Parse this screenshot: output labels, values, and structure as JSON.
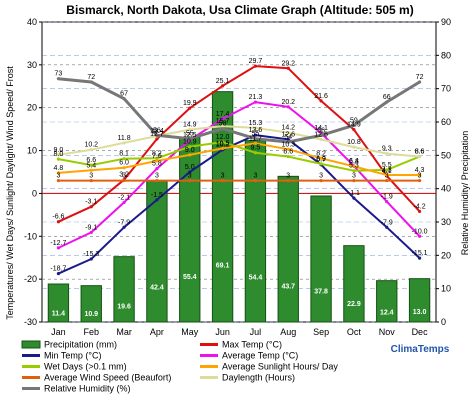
{
  "chart_data": {
    "type": "bar+line",
    "title": "Bismarck, North Dakota, Usa Climate Graph (Altitude: 505 m)",
    "ylabel_left": "Temperatures/ Wet Days/ Sunlight/ Daylight/ Wind Speed/ Frost",
    "ylabel_right": "Relative Humidity/ Precipitation",
    "ylim_left": [
      -30,
      40
    ],
    "ylim_right": [
      0,
      90
    ],
    "yticks_left": [
      "-30",
      "-20",
      "-10",
      "0",
      "10",
      "20",
      "30",
      "40"
    ],
    "yticks_right": [
      "0",
      "10",
      "20",
      "30",
      "40",
      "50",
      "60",
      "70",
      "80",
      "90"
    ],
    "categories": [
      "Jan",
      "Feb",
      "Mar",
      "Apr",
      "May",
      "Jun",
      "Jul",
      "Aug",
      "Sep",
      "Oct",
      "Nov",
      "Dec"
    ],
    "grid": true,
    "legend_position": "bottom",
    "brand": "ClimaTemps",
    "bars": {
      "name": "Precipitation (mm)",
      "axis": "right",
      "color": "#2e8b2e",
      "values": [
        11.4,
        10.9,
        19.6,
        42.4,
        55.4,
        69.1,
        54.4,
        43.7,
        37.8,
        22.9,
        12.4,
        13.0
      ]
    },
    "series": [
      {
        "name": "Max Temp (°C)",
        "axis": "left",
        "color": "#dd1111",
        "labels": true,
        "values": [
          -6.6,
          -3.1,
          3.2,
          12.7,
          19.9,
          25.1,
          29.7,
          29.2,
          21.6,
          14.9,
          4.1,
          -4.2
        ]
      },
      {
        "name": "Min Temp (°C)",
        "axis": "left",
        "color": "#1a1a8c",
        "labels": true,
        "values": [
          -18.7,
          -15.3,
          -7.9,
          -1.5,
          5.0,
          10.2,
          13.6,
          12.6,
          6.7,
          -1.1,
          -7.9,
          -15.1
        ]
      },
      {
        "name": "Average Temp (°C)",
        "axis": "left",
        "color": "#ee11ee",
        "labels": true,
        "values": [
          -12.7,
          -9.1,
          -2.1,
          5.8,
          12.5,
          17.4,
          21.3,
          20.2,
          14.1,
          6.4,
          -1.9,
          -10.0
        ]
      },
      {
        "name": "Wet Days (>0.1 mm)",
        "axis": "left",
        "color": "#99cc00",
        "labels": true,
        "values": [
          8.0,
          6.6,
          8.1,
          8.2,
          10.9,
          12.0,
          9.5,
          8.6,
          6.9,
          5.3,
          5.5,
          8.6
        ]
      },
      {
        "name": "Average Sunlight Hours/ Day",
        "axis": "left",
        "color": "#ffa500",
        "labels": true,
        "values": [
          4.8,
          5.4,
          6.0,
          7.6,
          9.0,
          10.5,
          11.7,
          10.3,
          8.2,
          6.3,
          4.3,
          4.3
        ]
      },
      {
        "name": "Average Wind Speed (Beaufort)",
        "axis": "left",
        "color": "#e06010",
        "labels": true,
        "values": [
          3,
          3,
          3,
          3,
          3,
          3,
          3,
          3,
          3,
          3,
          3,
          3
        ]
      },
      {
        "name": "Daylength (Hours)",
        "axis": "left",
        "color": "#dddd99",
        "labels": true,
        "values": [
          9.0,
          10.2,
          11.8,
          13.4,
          14.9,
          15.7,
          15.3,
          14.2,
          12.6,
          10.8,
          9.3,
          8.6
        ]
      },
      {
        "name": "Relative Humidity (%)",
        "axis": "right",
        "color": "#777777",
        "labels": true,
        "values": [
          73,
          72,
          67,
          56,
          55,
          58,
          55,
          54,
          56,
          59,
          66,
          72
        ]
      }
    ]
  }
}
